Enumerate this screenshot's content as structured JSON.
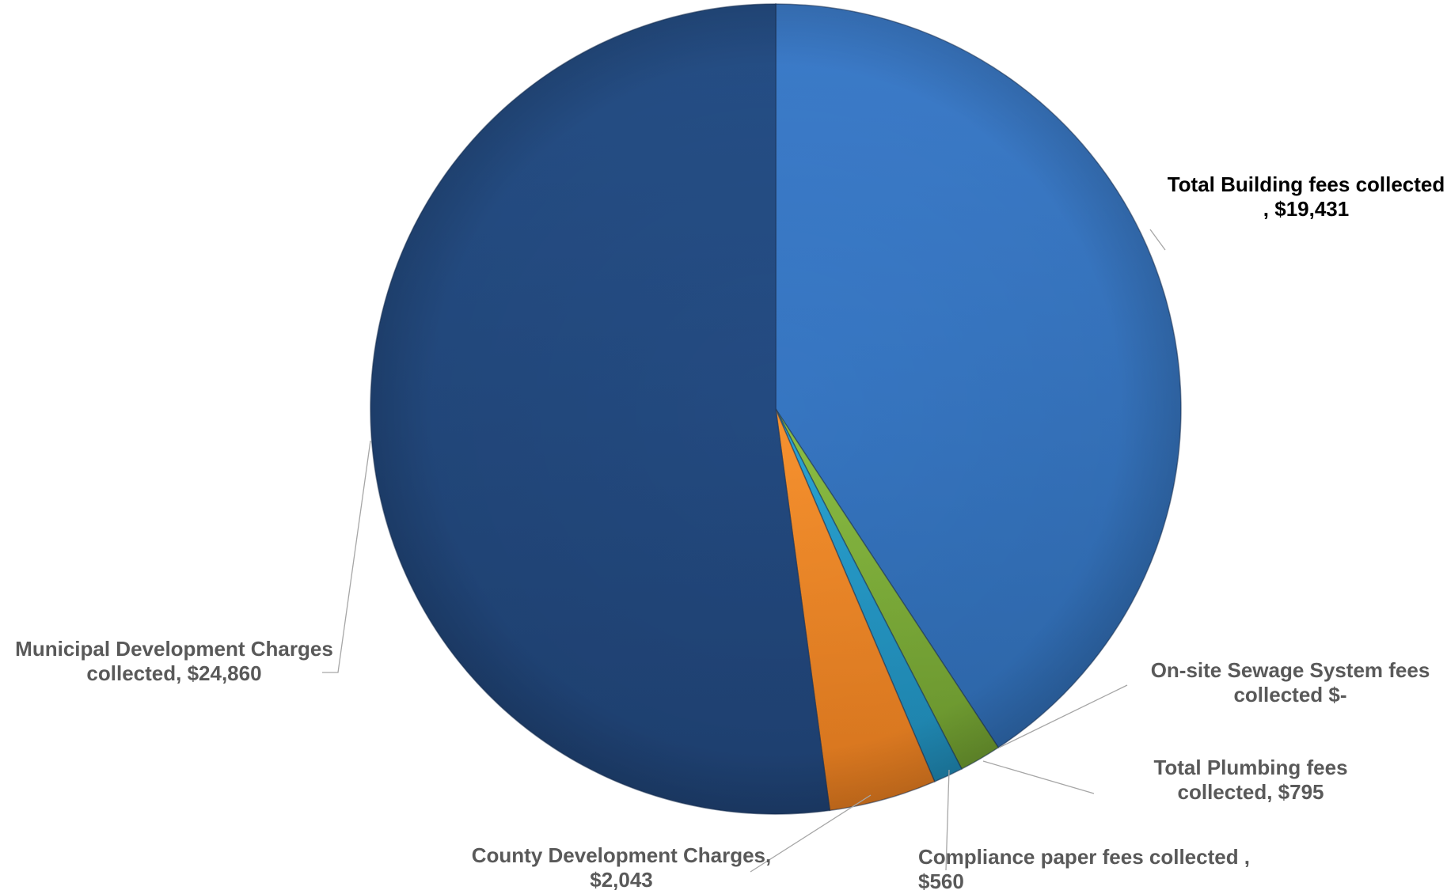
{
  "chart_data": {
    "type": "pie",
    "slices": [
      {
        "label_lines": [
          "Total Building fees collected",
          ",  $19,431"
        ],
        "value": 19431,
        "color": "#3f82d4",
        "color_dark": "#2f6bb1"
      },
      {
        "label_lines": [
          "On-site Sewage System fees",
          "collected  $-"
        ],
        "value": 0,
        "color": "#2e5f9e",
        "color_dark": "#244d82"
      },
      {
        "label_lines": [
          "Total Plumbing fees",
          "collected,  $795"
        ],
        "value": 795,
        "color": "#8dc045",
        "color_dark": "#6e9b2f"
      },
      {
        "label_lines": [
          "Compliance paper fees collected ,",
          "$560"
        ],
        "value": 560,
        "color": "#2aa6d6",
        "color_dark": "#1f87b2"
      },
      {
        "label_lines": [
          "County Development Charges,",
          "$2,043"
        ],
        "value": 2043,
        "color": "#f7922f",
        "color_dark": "#e17a1f"
      },
      {
        "label_lines": [
          "Municipal Development Charges",
          "collected,  $24,860"
        ],
        "value": 24860,
        "color": "#27528c",
        "color_dark": "#1f4274"
      }
    ],
    "label_color": "#595959",
    "label_color_emphasis": "#000000",
    "start_angle_deg": 0,
    "direction": "clockwise"
  }
}
